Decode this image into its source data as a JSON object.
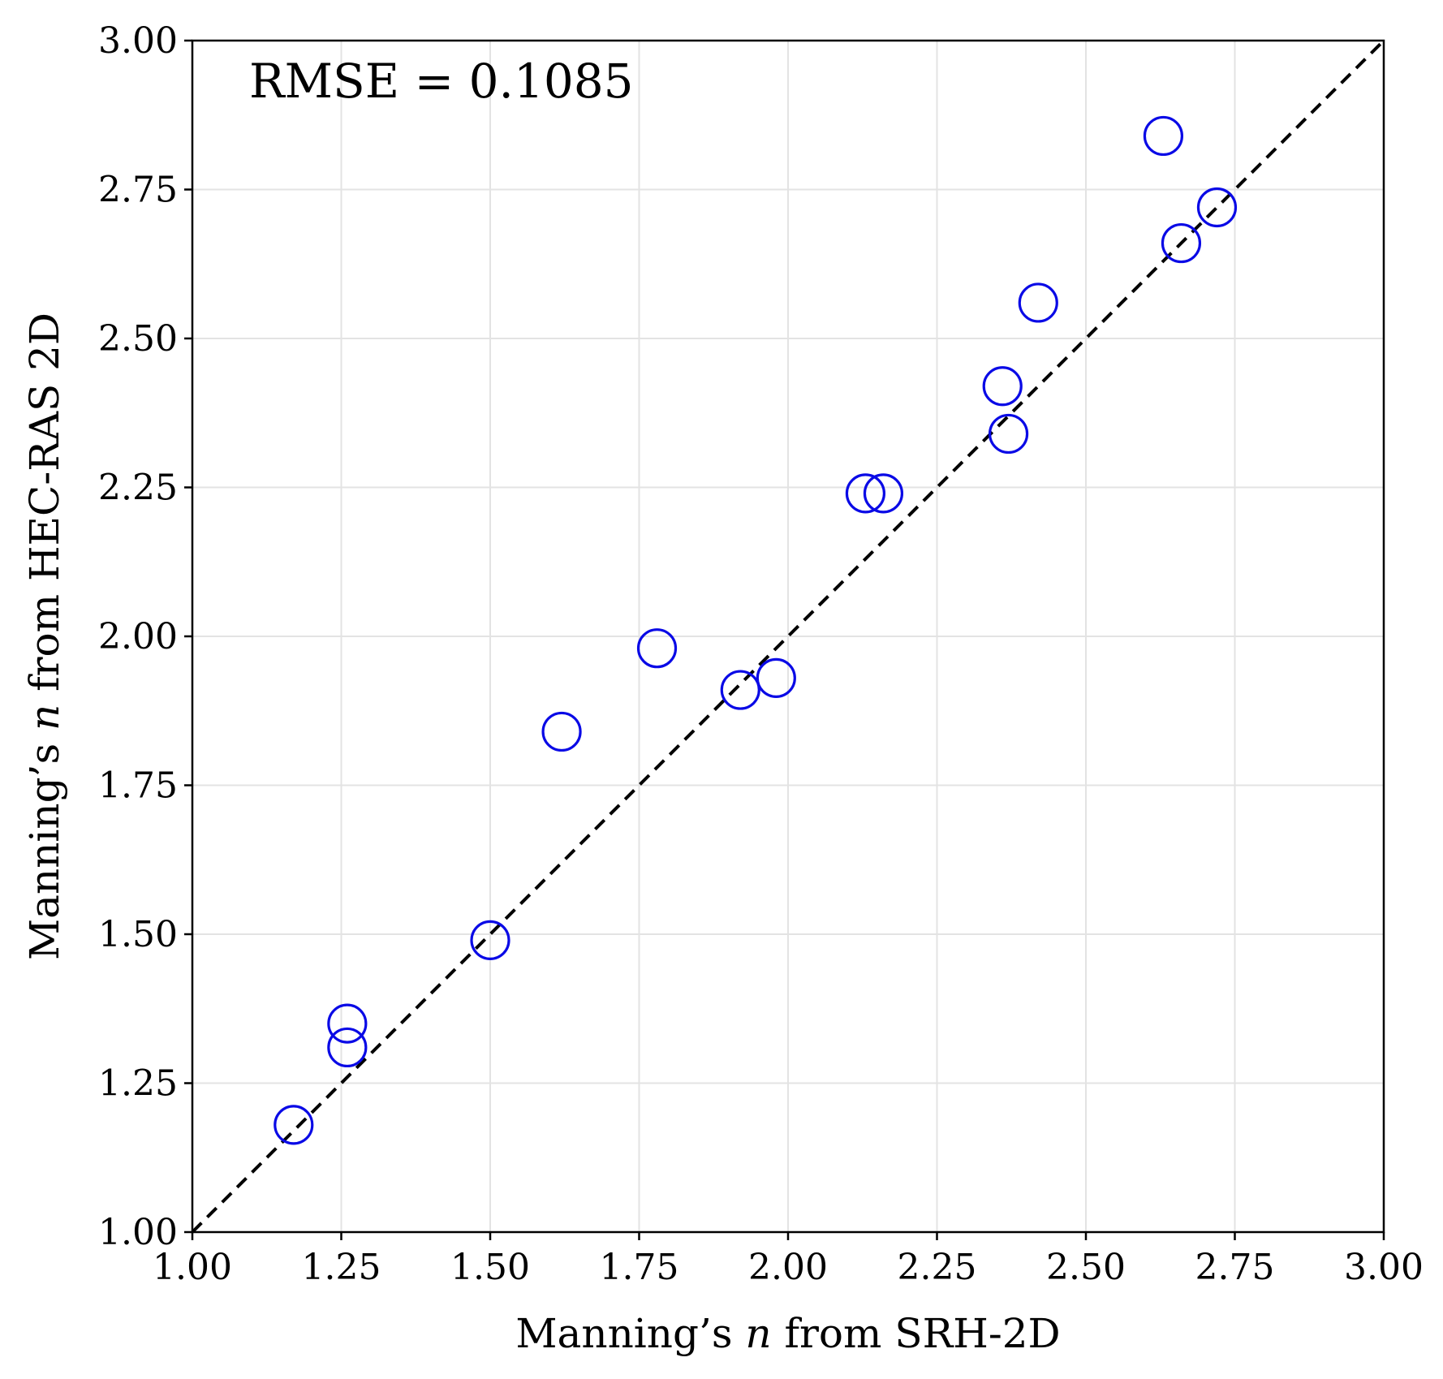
{
  "chart_data": {
    "type": "scatter",
    "title": "",
    "xlabel_parts": [
      "Manning’s ",
      "n",
      " from SRH-2D"
    ],
    "ylabel_parts": [
      "Manning’s ",
      "n",
      " from HEC-RAS 2D"
    ],
    "xlim": [
      1.0,
      3.0
    ],
    "ylim": [
      1.0,
      3.0
    ],
    "xticks": [
      "1.00",
      "1.25",
      "1.50",
      "1.75",
      "2.00",
      "2.25",
      "2.50",
      "2.75",
      "3.00"
    ],
    "yticks": [
      "1.00",
      "1.25",
      "1.50",
      "1.75",
      "2.00",
      "2.25",
      "2.50",
      "2.75",
      "3.00"
    ],
    "grid": true,
    "annotation": "RMSE = 0.1085",
    "reference_line": {
      "style": "dashed",
      "color": "#000000",
      "from": [
        1.0,
        1.0
      ],
      "to": [
        3.0,
        3.0
      ]
    },
    "marker": {
      "shape": "open-circle",
      "color": "#0a0ae6"
    },
    "series": [
      {
        "points": [
          {
            "x": 1.17,
            "y": 1.18
          },
          {
            "x": 1.26,
            "y": 1.35
          },
          {
            "x": 1.26,
            "y": 1.31
          },
          {
            "x": 1.5,
            "y": 1.49
          },
          {
            "x": 1.62,
            "y": 1.84
          },
          {
            "x": 1.78,
            "y": 1.98
          },
          {
            "x": 1.92,
            "y": 1.91
          },
          {
            "x": 1.98,
            "y": 1.93
          },
          {
            "x": 2.13,
            "y": 2.24
          },
          {
            "x": 2.16,
            "y": 2.24
          },
          {
            "x": 2.36,
            "y": 2.42
          },
          {
            "x": 2.37,
            "y": 2.34
          },
          {
            "x": 2.42,
            "y": 2.56
          },
          {
            "x": 2.63,
            "y": 2.84
          },
          {
            "x": 2.66,
            "y": 2.66
          },
          {
            "x": 2.72,
            "y": 2.72
          }
        ]
      }
    ]
  }
}
